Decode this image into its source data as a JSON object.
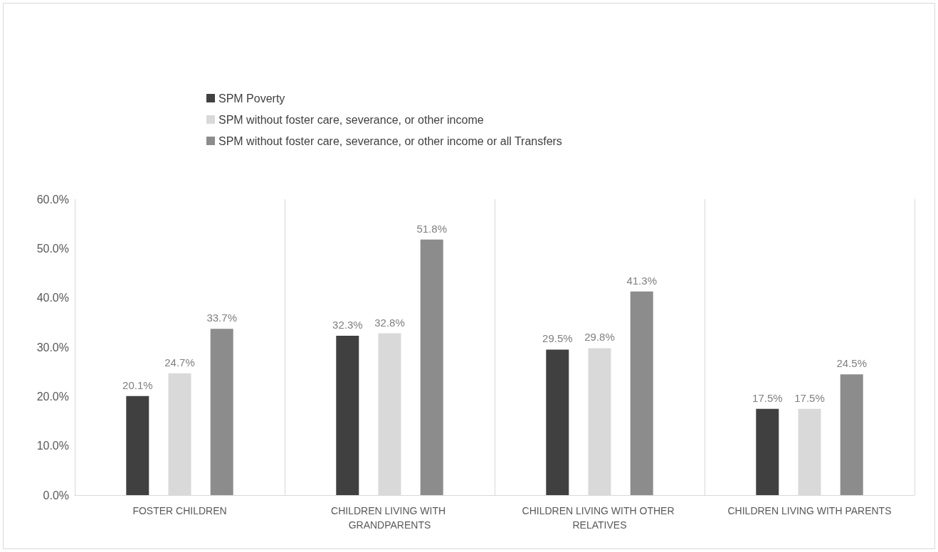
{
  "chart_data": {
    "type": "bar",
    "categories": [
      "FOSTER CHILDREN",
      "CHILDREN LIVING WITH GRANDPARENTS",
      "CHILDREN LIVING WITH OTHER RELATIVES",
      "CHILDREN LIVING WITH PARENTS"
    ],
    "series": [
      {
        "name": "SPM Poverty",
        "color": "#404040",
        "values": [
          20.1,
          32.3,
          29.5,
          17.5
        ],
        "value_labels": [
          "20.1%",
          "32.3%",
          "29.5%",
          "17.5%"
        ]
      },
      {
        "name": "SPM without foster care, severance, or other income",
        "color": "#d9d9d9",
        "values": [
          24.7,
          32.8,
          29.8,
          17.5
        ],
        "value_labels": [
          "24.7%",
          "32.8%",
          "29.8%",
          "17.5%"
        ]
      },
      {
        "name": "SPM without foster care, severance, or other income or all Transfers",
        "color": "#8c8c8c",
        "values": [
          33.7,
          51.8,
          41.3,
          24.5
        ],
        "value_labels": [
          "33.7%",
          "51.8%",
          "41.3%",
          "24.5%"
        ]
      }
    ],
    "ylim": [
      0,
      60
    ],
    "yticks": [
      {
        "value": 0,
        "label": "0.0%"
      },
      {
        "value": 10,
        "label": "10.0%"
      },
      {
        "value": 20,
        "label": "20.0%"
      },
      {
        "value": 30,
        "label": "30.0%"
      },
      {
        "value": 40,
        "label": "40.0%"
      },
      {
        "value": 50,
        "label": "50.0%"
      },
      {
        "value": 60,
        "label": "60.0%"
      }
    ],
    "grid": "x",
    "legend": "top"
  }
}
